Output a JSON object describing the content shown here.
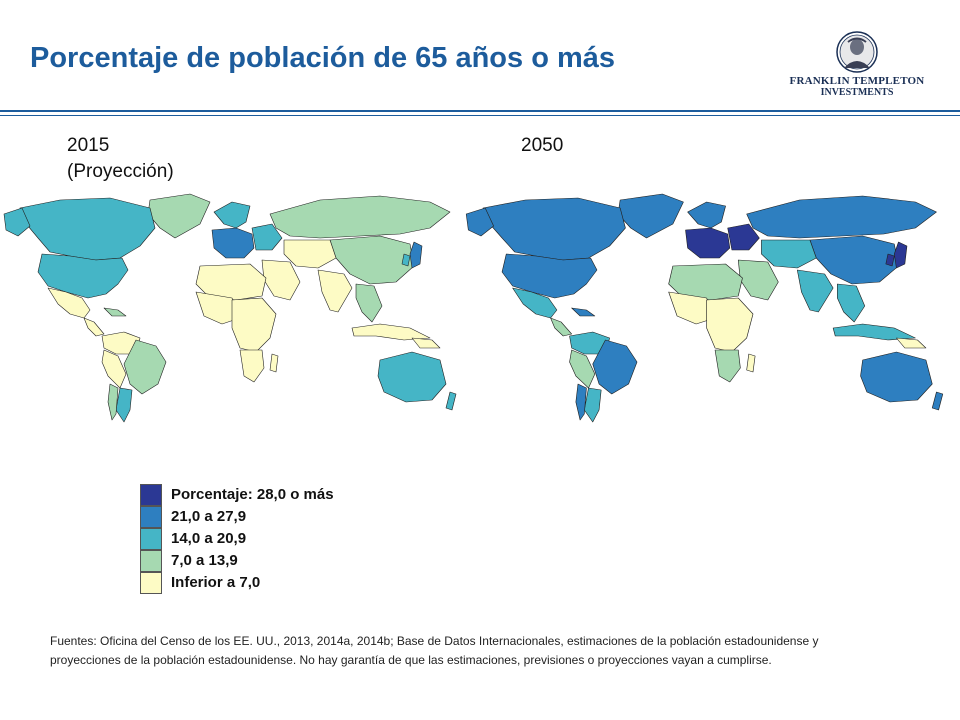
{
  "title": "Porcentaje de población de 65 años o más",
  "logo": {
    "line1": "FRANKLIN TEMPLETON",
    "line2": "INVESTMENTS"
  },
  "maps": [
    {
      "year_line1": "2015",
      "year_line2": "(Proyección)"
    },
    {
      "year_line1": "2050",
      "year_line2": ""
    }
  ],
  "colors": {
    "c28": "#2b3894",
    "c21": "#2e7fc0",
    "c14": "#45b5c6",
    "c7": "#a6d9b1",
    "c0": "#fdfbc5",
    "ocean": "#ffffff"
  },
  "legend": [
    {
      "label": "Porcentaje: 28,0 o más",
      "color": "#2b3894"
    },
    {
      "label": "21,0 a 27,9",
      "color": "#2e7fc0"
    },
    {
      "label": "14,0 a 20,9",
      "color": "#45b5c6"
    },
    {
      "label": "7,0 a 13,9",
      "color": "#a6d9b1"
    },
    {
      "label": "Inferior a 7,0",
      "color": "#fdfbc5"
    }
  ],
  "sources": "Fuentes: Oficina del Censo de los EE. UU., 2013, 2014a, 2014b; Base de Datos Internacionales, estimaciones de la población estadounidense y proyecciones de la población estadounidense. No hay garantía de que las estimaciones, previsiones o proyecciones vayan a cumplirse."
}
